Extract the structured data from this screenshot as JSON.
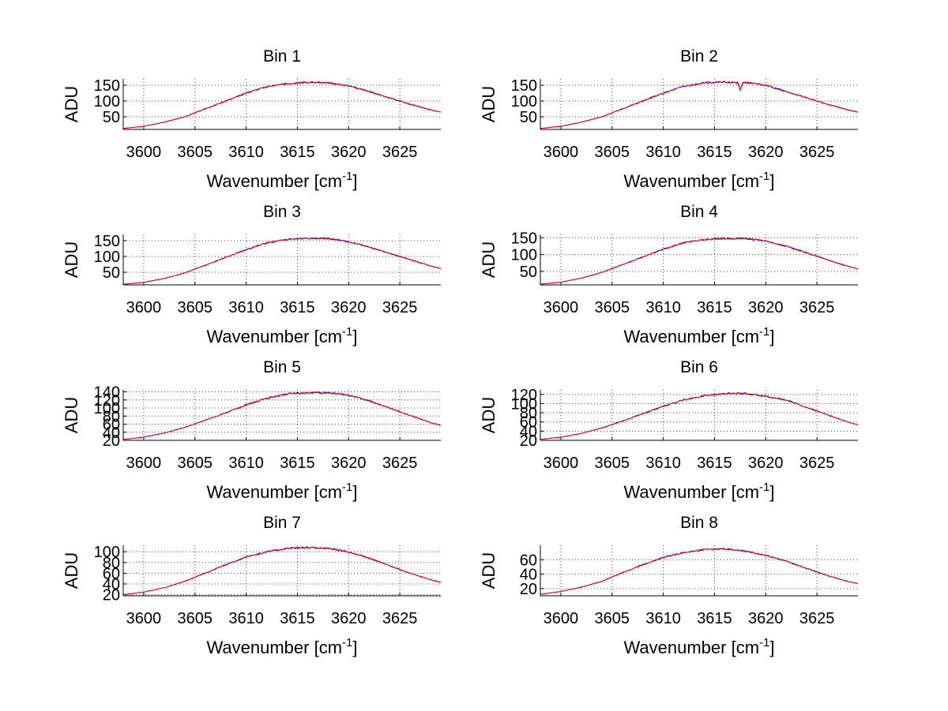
{
  "chart_data": [
    {
      "type": "line",
      "title": "Bin 1",
      "xlabel": "Wavenumber [cm",
      "xlabel_sup": "-1",
      "xlabel_end": "]",
      "ylabel": "ADU",
      "xlim": [
        3598,
        3629
      ],
      "ylim": [
        10,
        170
      ],
      "xticks": [
        3600,
        3605,
        3610,
        3615,
        3620,
        3625
      ],
      "yticks": [
        50,
        100,
        150
      ],
      "grid": true,
      "series": [
        {
          "name": "blue",
          "color": "#0000ff",
          "x": [
            3598,
            3600,
            3602,
            3604,
            3606,
            3608,
            3610,
            3612,
            3614,
            3616,
            3618,
            3620,
            3622,
            3624,
            3626,
            3628,
            3629
          ],
          "y": [
            13,
            20,
            33,
            50,
            75,
            100,
            125,
            145,
            155,
            160,
            158,
            148,
            130,
            110,
            90,
            72,
            65
          ]
        },
        {
          "name": "red",
          "color": "#ff0000",
          "x": [
            3598,
            3600,
            3602,
            3604,
            3606,
            3608,
            3610,
            3612,
            3614,
            3616,
            3618,
            3620,
            3622,
            3624,
            3626,
            3628,
            3629
          ],
          "y": [
            13,
            20,
            33,
            50,
            75,
            100,
            125,
            145,
            155,
            160,
            158,
            148,
            130,
            110,
            90,
            72,
            65
          ]
        }
      ]
    },
    {
      "type": "line",
      "title": "Bin 2",
      "xlabel": "Wavenumber [cm",
      "xlabel_sup": "-1",
      "xlabel_end": "]",
      "ylabel": "ADU",
      "xlim": [
        3598,
        3629
      ],
      "ylim": [
        10,
        170
      ],
      "xticks": [
        3600,
        3605,
        3610,
        3615,
        3620,
        3625
      ],
      "yticks": [
        50,
        100,
        150
      ],
      "grid": true,
      "series": [
        {
          "name": "blue",
          "color": "#0000ff",
          "x": [
            3598,
            3600,
            3602,
            3604,
            3606,
            3608,
            3610,
            3612,
            3614,
            3616,
            3617.3,
            3617.5,
            3617.7,
            3618,
            3620,
            3622,
            3624,
            3626,
            3628,
            3629
          ],
          "y": [
            13,
            20,
            33,
            50,
            75,
            100,
            125,
            147,
            157,
            161,
            158,
            132,
            157,
            160,
            150,
            130,
            110,
            90,
            72,
            65
          ]
        },
        {
          "name": "red",
          "color": "#ff0000",
          "x": [
            3598,
            3600,
            3602,
            3604,
            3606,
            3608,
            3610,
            3612,
            3614,
            3616,
            3617.3,
            3617.5,
            3617.7,
            3618,
            3620,
            3622,
            3624,
            3626,
            3628,
            3629
          ],
          "y": [
            13,
            20,
            33,
            50,
            75,
            100,
            125,
            147,
            157,
            161,
            158,
            132,
            157,
            160,
            150,
            130,
            110,
            90,
            72,
            65
          ]
        }
      ]
    },
    {
      "type": "line",
      "title": "Bin 3",
      "xlabel": "Wavenumber [cm",
      "xlabel_sup": "-1",
      "xlabel_end": "]",
      "ylabel": "ADU",
      "xlim": [
        3598,
        3629
      ],
      "ylim": [
        10,
        170
      ],
      "xticks": [
        3600,
        3605,
        3610,
        3615,
        3620,
        3625
      ],
      "yticks": [
        50,
        100,
        150
      ],
      "grid": true,
      "series": [
        {
          "name": "blue",
          "color": "#0000ff",
          "x": [
            3598,
            3600,
            3602,
            3604,
            3606,
            3608,
            3610,
            3612,
            3614,
            3616,
            3618,
            3620,
            3622,
            3624,
            3626,
            3628,
            3629
          ],
          "y": [
            12,
            18,
            30,
            48,
            72,
            97,
            122,
            143,
            154,
            158,
            157,
            147,
            130,
            110,
            90,
            70,
            62
          ]
        },
        {
          "name": "red",
          "color": "#ff0000",
          "x": [
            3598,
            3600,
            3602,
            3604,
            3606,
            3608,
            3610,
            3612,
            3614,
            3616,
            3618,
            3620,
            3622,
            3624,
            3626,
            3628,
            3629
          ],
          "y": [
            12,
            18,
            30,
            48,
            72,
            97,
            122,
            143,
            154,
            158,
            157,
            147,
            130,
            110,
            90,
            70,
            62
          ]
        }
      ]
    },
    {
      "type": "line",
      "title": "Bin 4",
      "xlabel": "Wavenumber [cm",
      "xlabel_sup": "-1",
      "xlabel_end": "]",
      "ylabel": "ADU",
      "xlim": [
        3598,
        3629
      ],
      "ylim": [
        10,
        160
      ],
      "xticks": [
        3600,
        3605,
        3610,
        3615,
        3620,
        3625
      ],
      "yticks": [
        50,
        100,
        150
      ],
      "grid": true,
      "series": [
        {
          "name": "blue",
          "color": "#0000ff",
          "x": [
            3598,
            3600,
            3602,
            3604,
            3606,
            3608,
            3610,
            3612,
            3614,
            3616,
            3618,
            3620,
            3622,
            3624,
            3626,
            3628,
            3629
          ],
          "y": [
            12,
            18,
            30,
            47,
            70,
            93,
            116,
            135,
            145,
            148,
            148,
            140,
            125,
            105,
            85,
            65,
            58
          ]
        },
        {
          "name": "red",
          "color": "#ff0000",
          "x": [
            3598,
            3600,
            3602,
            3604,
            3606,
            3608,
            3610,
            3612,
            3614,
            3616,
            3618,
            3620,
            3622,
            3624,
            3626,
            3628,
            3629
          ],
          "y": [
            12,
            18,
            30,
            47,
            70,
            93,
            116,
            135,
            145,
            148,
            148,
            140,
            125,
            105,
            85,
            65,
            58
          ]
        }
      ]
    },
    {
      "type": "line",
      "title": "Bin 5",
      "xlabel": "Wavenumber [cm",
      "xlabel_sup": "-1",
      "xlabel_end": "]",
      "ylabel": "ADU",
      "xlim": [
        3598,
        3629
      ],
      "ylim": [
        20,
        145
      ],
      "xticks": [
        3600,
        3605,
        3610,
        3615,
        3620,
        3625
      ],
      "yticks": [
        20,
        40,
        60,
        80,
        100,
        120,
        140
      ],
      "grid": true,
      "series": [
        {
          "name": "blue",
          "color": "#0000ff",
          "x": [
            3598,
            3600,
            3602,
            3604,
            3606,
            3608,
            3610,
            3612,
            3614,
            3616,
            3618,
            3620,
            3622,
            3624,
            3626,
            3628,
            3629
          ],
          "y": [
            22,
            28,
            38,
            52,
            70,
            88,
            108,
            124,
            135,
            138,
            138,
            132,
            118,
            100,
            82,
            64,
            57
          ]
        },
        {
          "name": "red",
          "color": "#ff0000",
          "x": [
            3598,
            3600,
            3602,
            3604,
            3606,
            3608,
            3610,
            3612,
            3614,
            3616,
            3618,
            3620,
            3622,
            3624,
            3626,
            3628,
            3629
          ],
          "y": [
            22,
            28,
            38,
            52,
            70,
            88,
            108,
            124,
            135,
            138,
            138,
            132,
            118,
            100,
            82,
            64,
            57
          ]
        }
      ]
    },
    {
      "type": "line",
      "title": "Bin 6",
      "xlabel": "Wavenumber [cm",
      "xlabel_sup": "-1",
      "xlabel_end": "]",
      "ylabel": "ADU",
      "xlim": [
        3598,
        3629
      ],
      "ylim": [
        20,
        130
      ],
      "xticks": [
        3600,
        3605,
        3610,
        3615,
        3620,
        3625
      ],
      "yticks": [
        20,
        40,
        60,
        80,
        100,
        120
      ],
      "grid": true,
      "series": [
        {
          "name": "blue",
          "color": "#0000ff",
          "x": [
            3598,
            3600,
            3602,
            3604,
            3606,
            3608,
            3610,
            3612,
            3614,
            3616,
            3618,
            3620,
            3622,
            3624,
            3626,
            3628,
            3629
          ],
          "y": [
            22,
            27,
            35,
            47,
            62,
            78,
            94,
            108,
            117,
            122,
            122,
            116,
            108,
            92,
            76,
            60,
            54
          ]
        },
        {
          "name": "red",
          "color": "#ff0000",
          "x": [
            3598,
            3600,
            3602,
            3604,
            3606,
            3608,
            3610,
            3612,
            3614,
            3616,
            3618,
            3620,
            3622,
            3624,
            3626,
            3628,
            3629
          ],
          "y": [
            22,
            27,
            35,
            47,
            62,
            78,
            94,
            108,
            117,
            122,
            122,
            116,
            108,
            92,
            76,
            60,
            54
          ]
        }
      ]
    },
    {
      "type": "line",
      "title": "Bin 7",
      "xlabel": "Wavenumber [cm",
      "xlabel_sup": "-1",
      "xlabel_end": "]",
      "ylabel": "ADU",
      "xlim": [
        3598,
        3629
      ],
      "ylim": [
        18,
        112
      ],
      "xticks": [
        3600,
        3605,
        3610,
        3615,
        3620,
        3625
      ],
      "yticks": [
        20,
        40,
        60,
        80,
        100
      ],
      "grid": true,
      "series": [
        {
          "name": "blue",
          "color": "#0000ff",
          "x": [
            3598,
            3600,
            3602,
            3604,
            3606,
            3608,
            3610,
            3612,
            3614,
            3616,
            3618,
            3620,
            3622,
            3624,
            3626,
            3628,
            3629
          ],
          "y": [
            20,
            25,
            33,
            45,
            60,
            76,
            90,
            100,
            106,
            108,
            106,
            100,
            88,
            74,
            60,
            48,
            43
          ]
        },
        {
          "name": "red",
          "color": "#ff0000",
          "x": [
            3598,
            3600,
            3602,
            3604,
            3606,
            3608,
            3610,
            3612,
            3614,
            3616,
            3618,
            3620,
            3622,
            3624,
            3626,
            3628,
            3629
          ],
          "y": [
            20,
            25,
            33,
            45,
            60,
            76,
            90,
            100,
            106,
            108,
            106,
            100,
            88,
            74,
            60,
            48,
            43
          ]
        }
      ]
    },
    {
      "type": "line",
      "title": "Bin 8",
      "xlabel": "Wavenumber [cm",
      "xlabel_sup": "-1",
      "xlabel_end": "]",
      "ylabel": "ADU",
      "xlim": [
        3598,
        3629
      ],
      "ylim": [
        10,
        80
      ],
      "xticks": [
        3600,
        3605,
        3610,
        3615,
        3620,
        3625
      ],
      "yticks": [
        20,
        40,
        60
      ],
      "grid": true,
      "series": [
        {
          "name": "blue",
          "color": "#0000ff",
          "x": [
            3598,
            3600,
            3602,
            3604,
            3606,
            3608,
            3610,
            3612,
            3614,
            3616,
            3618,
            3620,
            3622,
            3624,
            3626,
            3628,
            3629
          ],
          "y": [
            12,
            16,
            22,
            30,
            42,
            53,
            63,
            70,
            74,
            75,
            72,
            66,
            58,
            48,
            38,
            30,
            27
          ]
        },
        {
          "name": "red",
          "color": "#ff0000",
          "x": [
            3598,
            3600,
            3602,
            3604,
            3606,
            3608,
            3610,
            3612,
            3614,
            3616,
            3618,
            3620,
            3622,
            3624,
            3626,
            3628,
            3629
          ],
          "y": [
            12,
            16,
            22,
            30,
            42,
            53,
            63,
            70,
            74,
            75,
            72,
            66,
            58,
            48,
            38,
            30,
            27
          ]
        }
      ]
    }
  ]
}
